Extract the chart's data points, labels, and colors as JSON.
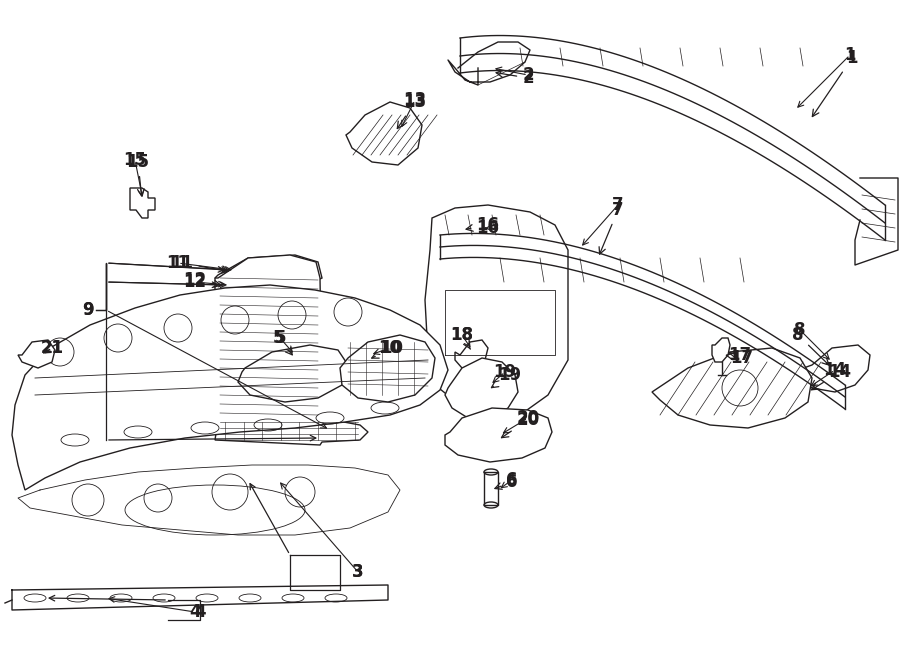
{
  "background_color": "#ffffff",
  "line_color": "#231f20",
  "label_color": "#000000",
  "figsize": [
    9.0,
    6.61
  ],
  "dpi": 100
}
